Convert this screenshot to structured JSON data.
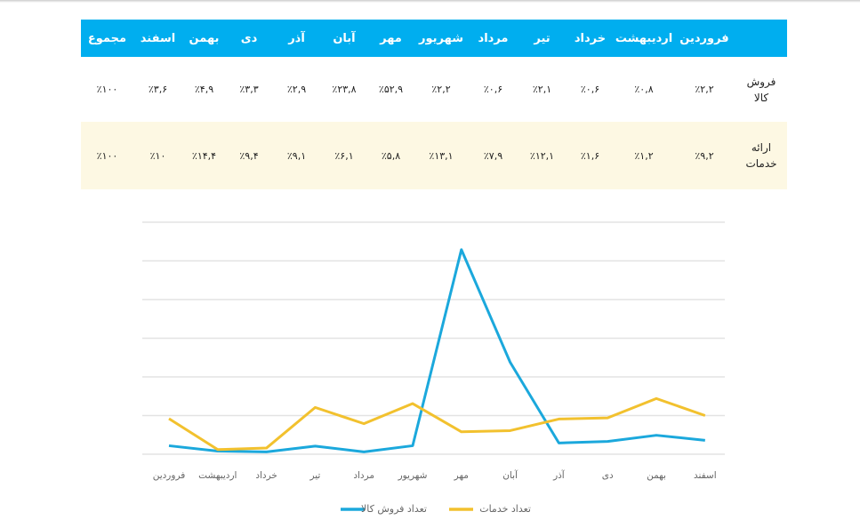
{
  "table": {
    "headers": [
      "",
      "فروردین",
      "اردیبهشت",
      "خرداد",
      "تیر",
      "مرداد",
      "شهریور",
      "مهر",
      "آبان",
      "آذر",
      "دی",
      "بهمن",
      "اسفند",
      "مجموع"
    ],
    "rows": [
      {
        "label": [
          "فروش",
          "کالا"
        ],
        "cells": [
          "٪۲,۲",
          "٪۰,۸",
          "٪۰,۶",
          "٪۲,۱",
          "٪۰,۶",
          "٪۲,۲",
          "٪۵۲,۹",
          "٪۲۳,۸",
          "٪۲,۹",
          "٪۳,۳",
          "٪۴,۹",
          "٪۳,۶",
          "٪۱۰۰"
        ]
      },
      {
        "label": [
          "ارائه",
          "خدمات"
        ],
        "cells": [
          "٪۹,۲",
          "٪۱,۲",
          "٪۱,۶",
          "٪۱۲,۱",
          "٪۷,۹",
          "٪۱۳,۱",
          "٪۵,۸",
          "٪۶,۱",
          "٪۹,۱",
          "٪۹,۴",
          "٪۱۴,۴",
          "٪۱۰",
          "٪۱۰۰"
        ]
      }
    ],
    "colors": {
      "header_bg": "#00aeef",
      "row2_bg": "#fdf8e3"
    }
  },
  "chart_data": {
    "type": "line",
    "categories": [
      "فروردین",
      "اردیبهشت",
      "خرداد",
      "تیر",
      "مرداد",
      "شهریور",
      "مهر",
      "آبان",
      "آذر",
      "دی",
      "بهمن",
      "اسفند"
    ],
    "series": [
      {
        "name": "تعداد فروش کالا",
        "color": "#1ba8dc",
        "values": [
          2.2,
          0.8,
          0.6,
          2.1,
          0.6,
          2.2,
          52.9,
          23.8,
          2.9,
          3.3,
          4.9,
          3.6
        ]
      },
      {
        "name": "تعداد خدمات",
        "color": "#f2c12e",
        "values": [
          9.2,
          1.2,
          1.6,
          12.1,
          7.9,
          13.1,
          5.8,
          6.1,
          9.1,
          9.4,
          14.4,
          10
        ]
      }
    ],
    "ylim": [
      0,
      60
    ],
    "yticks": [
      0,
      10,
      20,
      30,
      40,
      50,
      60
    ],
    "grid": true,
    "legend": "bottom"
  }
}
